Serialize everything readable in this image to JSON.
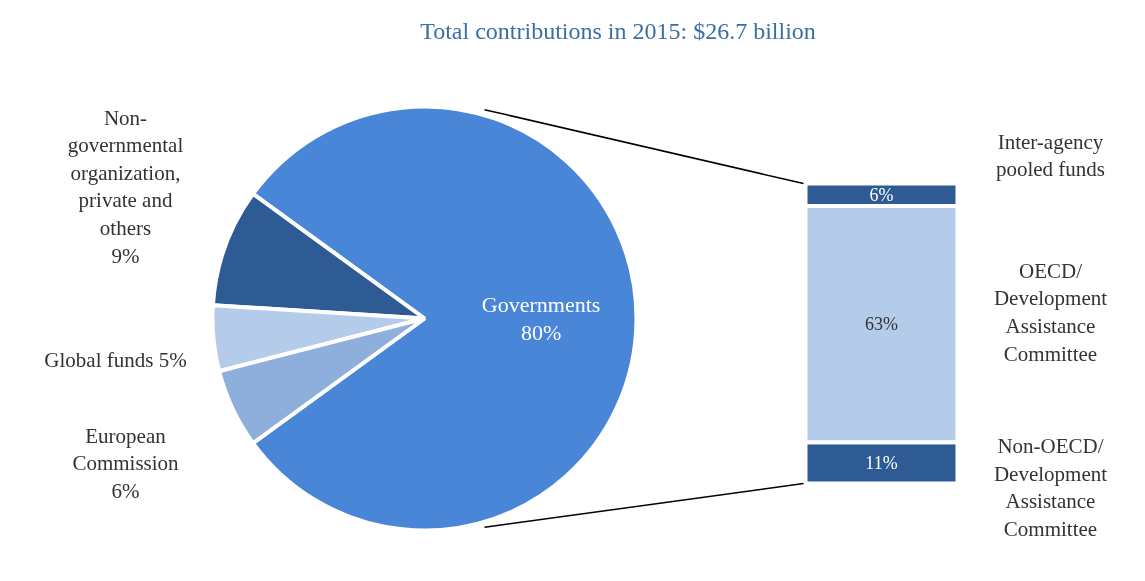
{
  "chart_data": [
    {
      "type": "pie",
      "title": "Total contributions in 2015: $26.7 billion",
      "categories": [
        "Governments",
        "Non-governmental organization, private and others",
        "Global funds",
        "European Commission"
      ],
      "values": [
        80,
        9,
        5,
        6
      ],
      "colors": [
        "#4a86d8",
        "#2e5b94",
        "#b4cbe9",
        "#8eaedb"
      ],
      "value_labels": [
        "80%",
        "9%",
        "5%",
        "6%"
      ]
    },
    {
      "type": "bar",
      "stacked": true,
      "categories": [
        null
      ],
      "series": [
        {
          "name": "Non-OECD/Development Assistance Committee",
          "color": "#2e5b94",
          "values": [
            11
          ],
          "value_labels": [
            "11%"
          ]
        },
        {
          "name": "OECD/Development Assistance Committee",
          "color": "#b4cbe9",
          "values": [
            63
          ],
          "value_labels": [
            "63%"
          ]
        },
        {
          "name": "Inter-agency pooled funds",
          "color": "#2e5b94",
          "values": [
            6
          ],
          "value_labels": [
            "6%"
          ]
        }
      ]
    }
  ]
}
